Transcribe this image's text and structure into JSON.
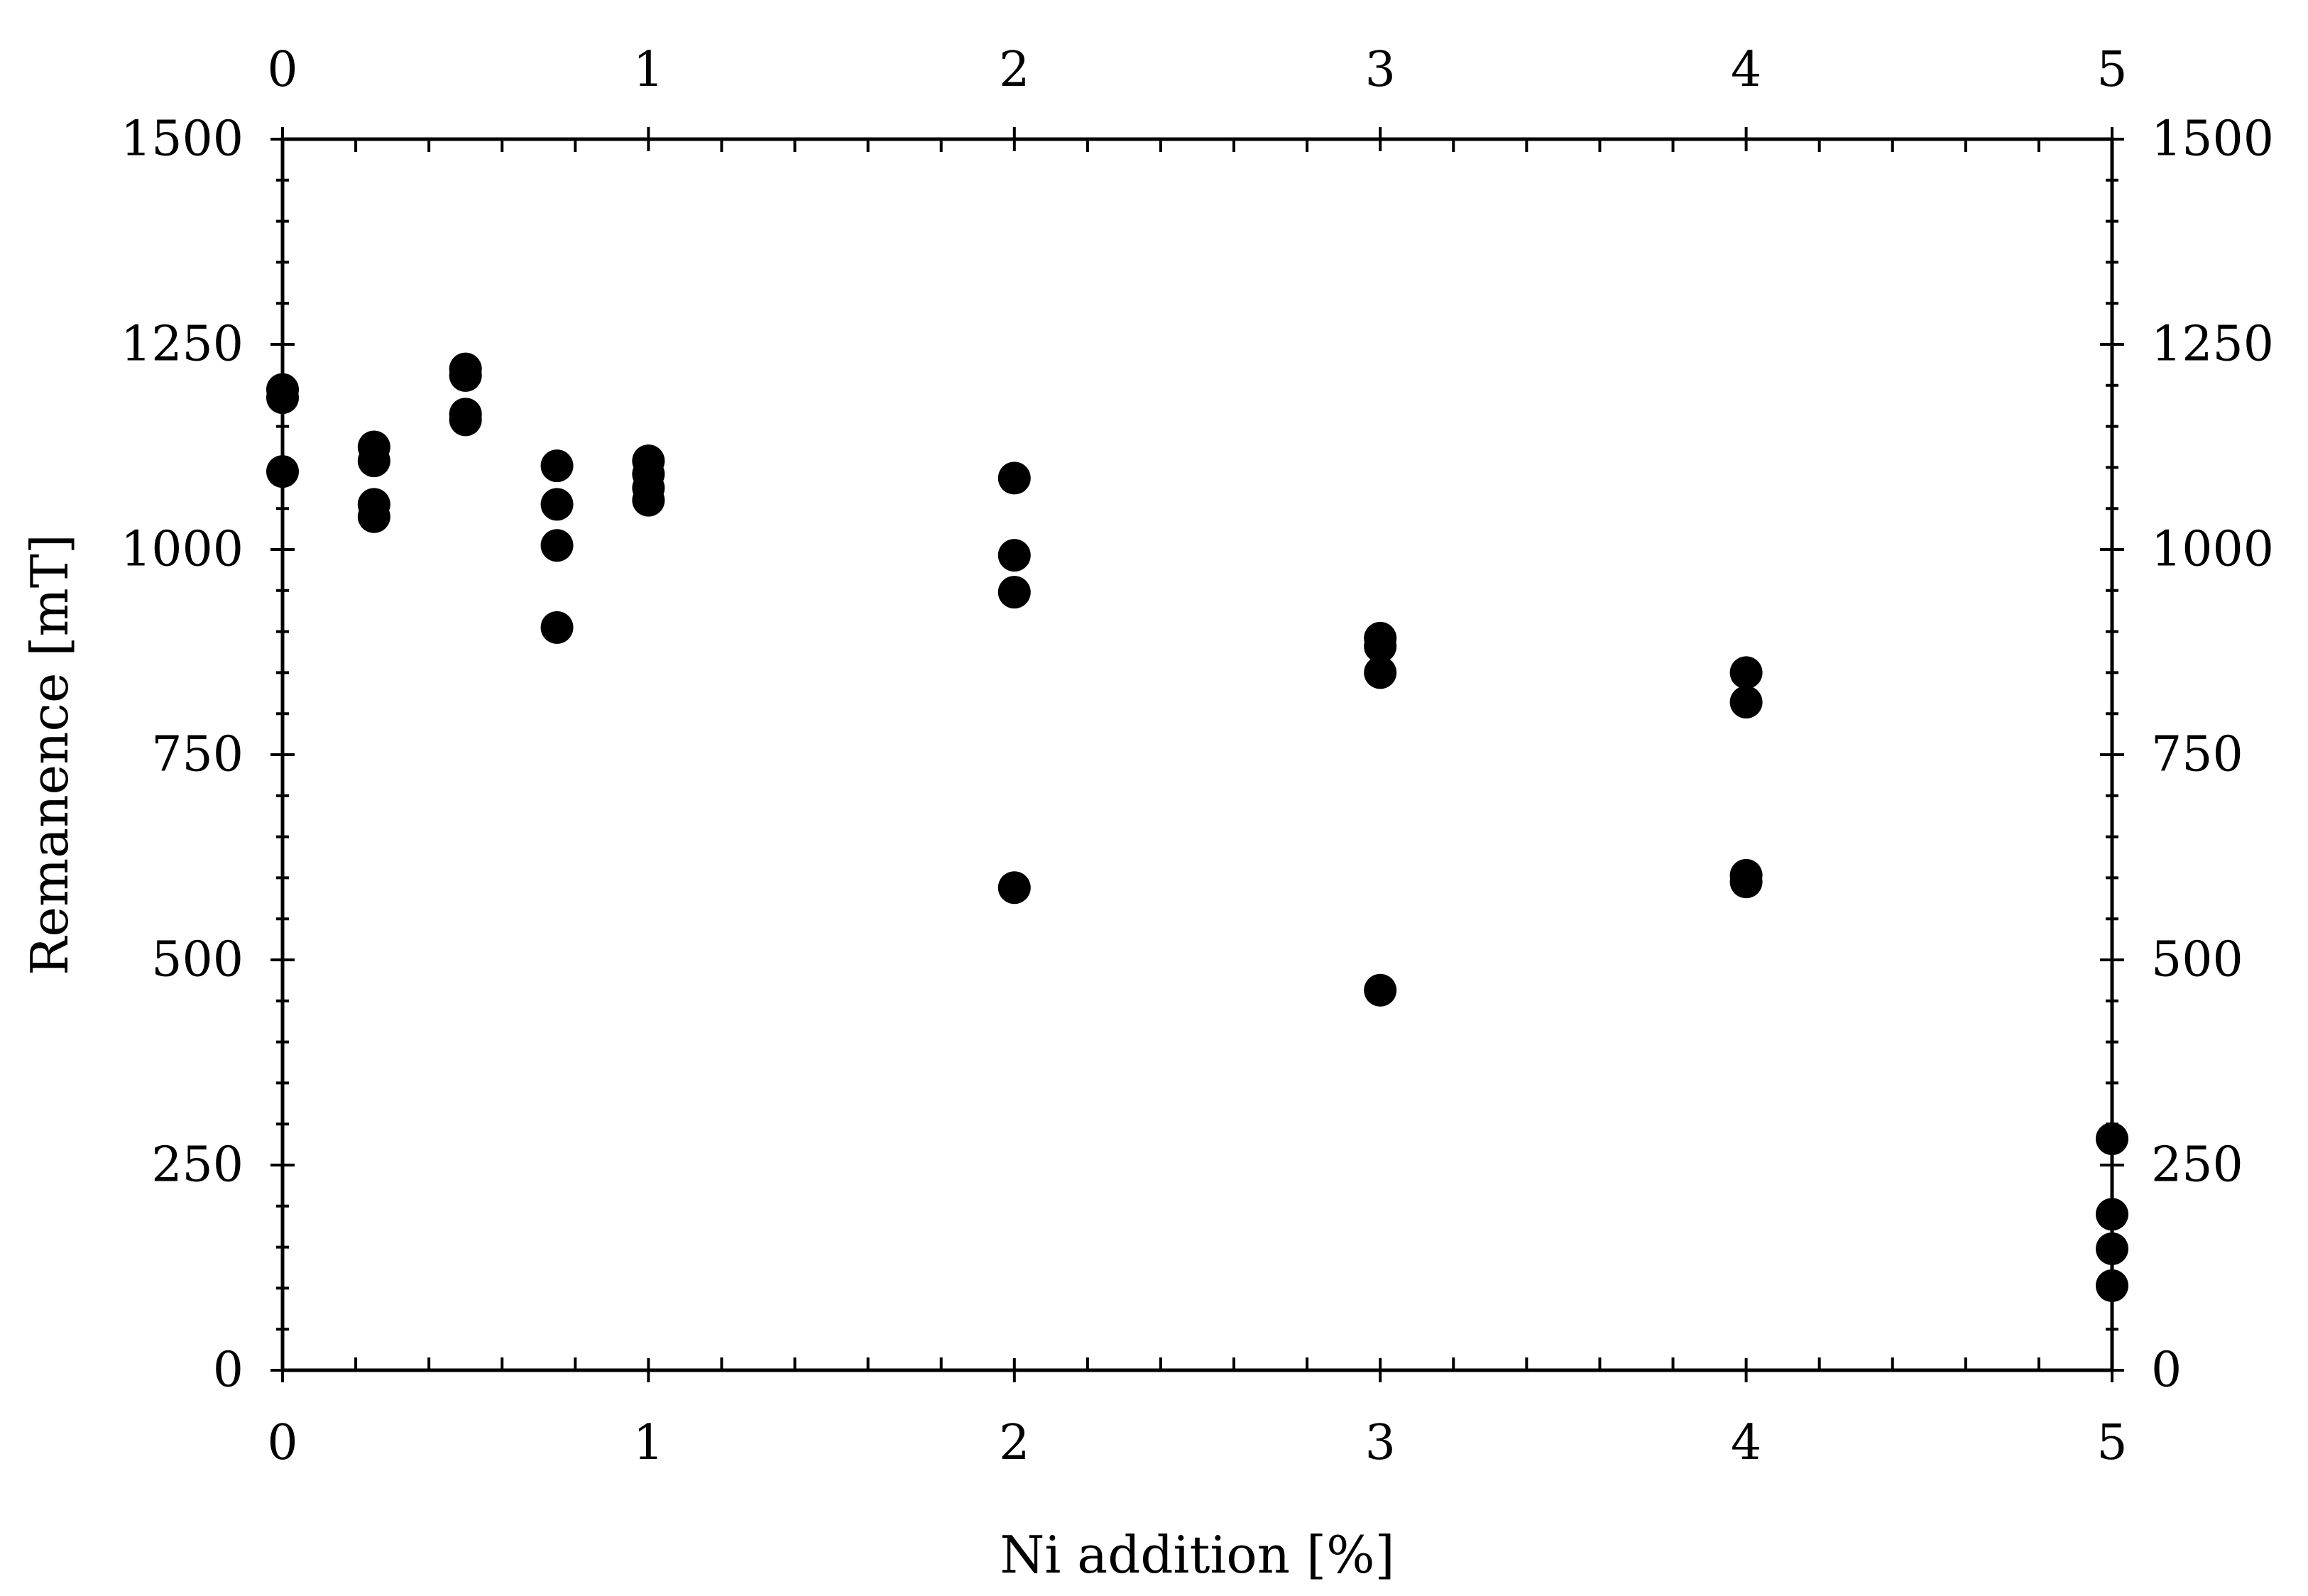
{
  "chart_data": {
    "type": "scatter",
    "title": "",
    "xlabel": "Ni addition [%]",
    "ylabel": "Remanence [mT]",
    "xlim": [
      0,
      5
    ],
    "ylim": [
      0,
      1500
    ],
    "x_ticks": [
      "0",
      "1",
      "2",
      "3",
      "4",
      "5"
    ],
    "y_ticks": [
      "0",
      "250",
      "500",
      "750",
      "1000",
      "1250",
      "1500"
    ],
    "top_x_ticks": [
      "0",
      "1",
      "2",
      "3",
      "4",
      "5"
    ],
    "right_y_ticks": [
      "0",
      "250",
      "500",
      "750",
      "1000",
      "1250",
      "1500"
    ],
    "x_scale": "piecewise-linear (0 to 1 occupies same width as 1 to 2)",
    "grid": false,
    "legend": "none",
    "marker_color": "#000000",
    "series": [
      {
        "points": [
          {
            "x": 0,
            "y": 1195
          },
          {
            "x": 0,
            "y": 1185
          },
          {
            "x": 0,
            "y": 1095
          },
          {
            "x": 0.25,
            "y": 1125
          },
          {
            "x": 0.25,
            "y": 1108
          },
          {
            "x": 0.25,
            "y": 1055
          },
          {
            "x": 0.25,
            "y": 1040
          },
          {
            "x": 0.5,
            "y": 1220
          },
          {
            "x": 0.5,
            "y": 1212
          },
          {
            "x": 0.5,
            "y": 1165
          },
          {
            "x": 0.5,
            "y": 1158
          },
          {
            "x": 0.75,
            "y": 1102
          },
          {
            "x": 0.75,
            "y": 1055
          },
          {
            "x": 0.75,
            "y": 1005
          },
          {
            "x": 0.75,
            "y": 905
          },
          {
            "x": 1,
            "y": 1108
          },
          {
            "x": 1,
            "y": 1092
          },
          {
            "x": 1,
            "y": 1075
          },
          {
            "x": 1,
            "y": 1060
          },
          {
            "x": 2,
            "y": 1087
          },
          {
            "x": 2,
            "y": 993
          },
          {
            "x": 2,
            "y": 948
          },
          {
            "x": 2,
            "y": 588
          },
          {
            "x": 3,
            "y": 892
          },
          {
            "x": 3,
            "y": 882
          },
          {
            "x": 3,
            "y": 850
          },
          {
            "x": 3,
            "y": 463
          },
          {
            "x": 4,
            "y": 850
          },
          {
            "x": 4,
            "y": 814
          },
          {
            "x": 4,
            "y": 603
          },
          {
            "x": 4,
            "y": 595
          },
          {
            "x": 5,
            "y": 282
          },
          {
            "x": 5,
            "y": 190
          },
          {
            "x": 5,
            "y": 148
          },
          {
            "x": 5,
            "y": 103
          }
        ]
      }
    ]
  }
}
